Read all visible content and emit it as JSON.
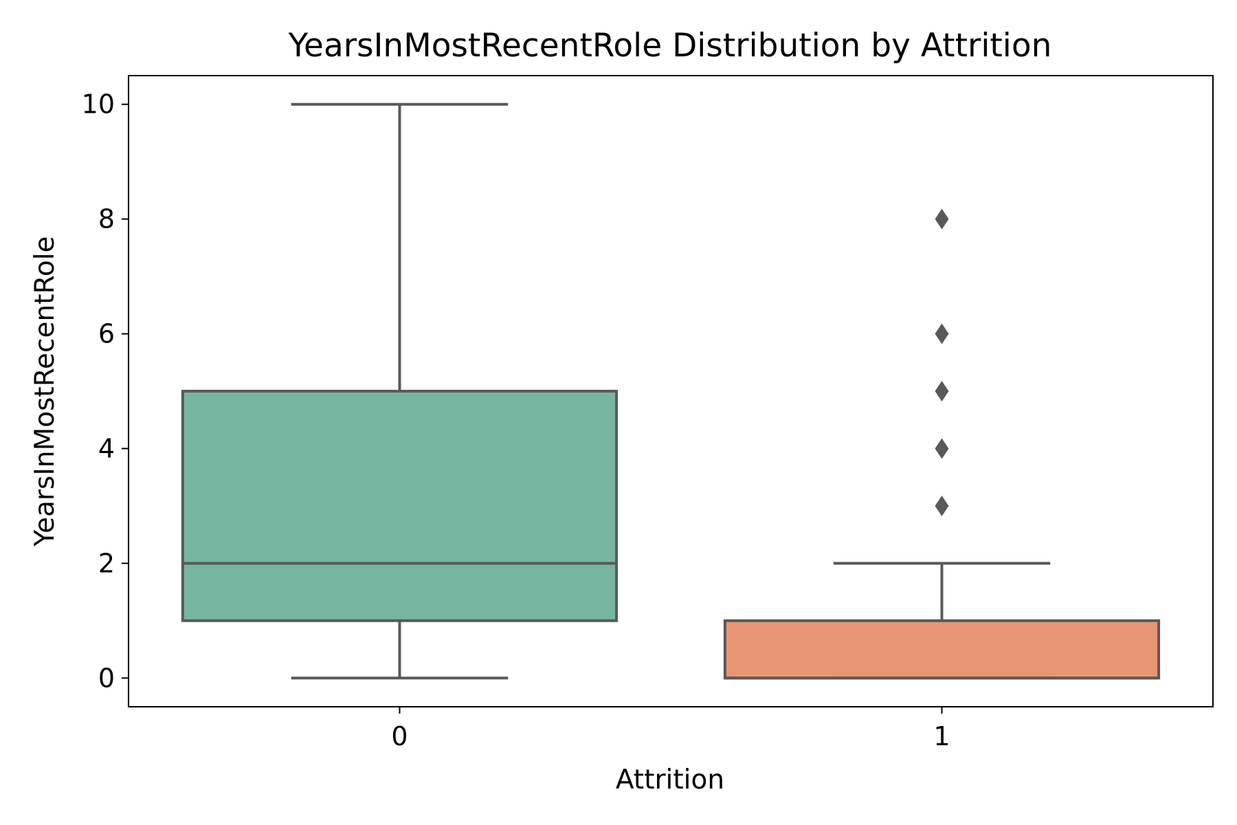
{
  "chart_data": {
    "type": "box",
    "title": "YearsInMostRecentRole Distribution by Attrition",
    "xlabel": "Attrition",
    "ylabel": "YearsInMostRecentRole",
    "categories": [
      "0",
      "1"
    ],
    "ylim": [
      -0.5,
      10.5
    ],
    "yticks": [
      0,
      2,
      4,
      6,
      8,
      10
    ],
    "grid": false,
    "legend": "none",
    "boxes": [
      {
        "category": "0",
        "whisker_low": 0,
        "q1": 1,
        "median": 2,
        "q3": 5,
        "whisker_high": 10,
        "outliers": [],
        "color": "#76b6a0"
      },
      {
        "category": "1",
        "whisker_low": 0,
        "q1": 0,
        "median": 0,
        "q3": 1,
        "whisker_high": 2,
        "outliers": [
          3,
          4,
          5,
          6,
          8
        ],
        "color": "#e89575"
      }
    ],
    "line_color": "#595959"
  }
}
